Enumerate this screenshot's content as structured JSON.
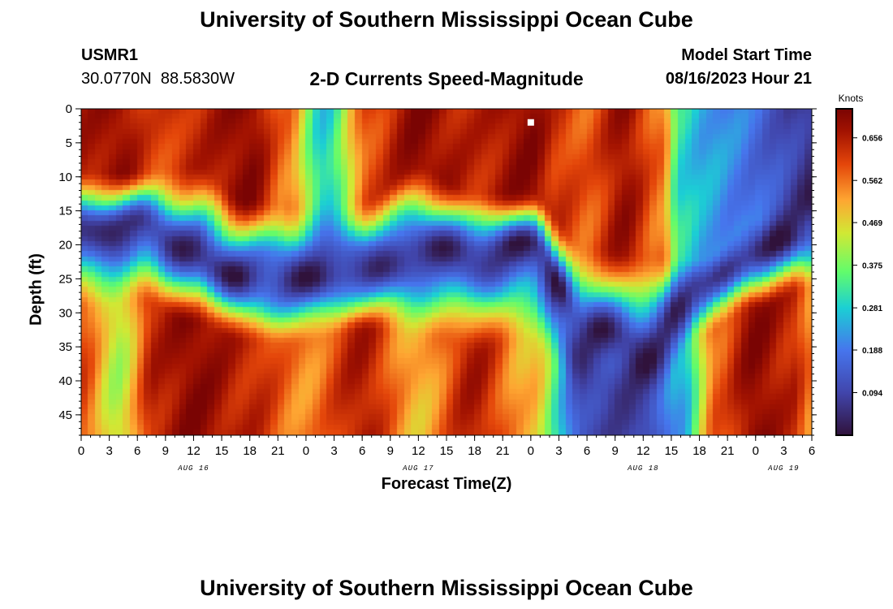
{
  "page": {
    "title_top": "University of Southern Mississippi Ocean Cube",
    "title_bottom": "University of Southern Mississippi Ocean Cube",
    "station_id": "USMR1",
    "station_coords": "30.0770N  88.5830W",
    "chart_heading": "2-D Currents Speed-Magnitude",
    "model_start_label": "Model Start Time",
    "model_start_value": "08/16/2023 Hour 21"
  },
  "chart_data": {
    "type": "heatmap",
    "title": "2-D Currents Speed-Magnitude",
    "xlabel": "Forecast Time(Z)",
    "ylabel": "Depth (ft)",
    "x_range": [
      0,
      78
    ],
    "y_range": [
      0,
      48
    ],
    "x_ticks": [
      "0",
      "3",
      "6",
      "9",
      "12",
      "15",
      "18",
      "21",
      "0",
      "3",
      "6",
      "9",
      "12",
      "15",
      "18",
      "21",
      "0",
      "3",
      "6",
      "9",
      "12",
      "15",
      "18",
      "21",
      "0",
      "3",
      "6"
    ],
    "y_ticks": [
      0,
      5,
      10,
      15,
      20,
      25,
      30,
      35,
      40,
      45
    ],
    "date_labels": [
      {
        "text": "AUG 16",
        "hour": 12
      },
      {
        "text": "AUG 17",
        "hour": 36
      },
      {
        "text": "AUG 18",
        "hour": 60
      },
      {
        "text": "AUG 19",
        "hour": 75
      }
    ],
    "colorbar": {
      "unit": "Knots",
      "min": 0.0,
      "max": 0.72,
      "ticks": [
        0.656,
        0.562,
        0.469,
        0.375,
        0.281,
        0.188,
        0.094
      ],
      "tick_labels": [
        "0.656",
        "0.562",
        "0.469",
        "0.375",
        "0.281",
        "0.188",
        "0.094"
      ]
    },
    "surface_field": {
      "description": "surface layer speed by forecast hour",
      "hours": [
        0,
        4,
        8,
        12,
        18,
        22,
        26,
        31,
        36,
        42,
        48,
        51,
        54,
        58,
        62,
        64,
        67,
        70,
        72,
        74,
        76,
        78
      ],
      "speeds": [
        0.66,
        0.69,
        0.6,
        0.64,
        0.7,
        0.56,
        0.28,
        0.6,
        0.7,
        0.64,
        0.7,
        0.62,
        0.58,
        0.68,
        0.56,
        0.3,
        0.24,
        0.2,
        0.17,
        0.13,
        0.09,
        0.06
      ]
    },
    "bottom_field": {
      "description": "near-bottom layer speed by forecast hour",
      "hours": [
        0,
        4,
        8,
        12,
        18,
        24,
        30,
        36,
        42,
        48,
        54,
        60,
        64,
        68,
        72,
        76,
        78
      ],
      "speeds": [
        0.6,
        0.42,
        0.65,
        0.7,
        0.64,
        0.54,
        0.66,
        0.5,
        0.66,
        0.5,
        0.1,
        0.08,
        0.24,
        0.58,
        0.7,
        0.64,
        0.55
      ]
    },
    "low_speed_band": {
      "description": "depth (ft) of the low-speed core by forecast hour",
      "hours": [
        0,
        6,
        12,
        18,
        24,
        30,
        36,
        42,
        48,
        54,
        60,
        66,
        72,
        78
      ],
      "core_depth_ft": [
        18,
        17,
        22,
        25,
        25,
        24,
        21,
        21,
        20,
        33,
        35,
        26,
        21,
        18
      ],
      "upper_edge_ft": [
        9,
        9,
        8,
        13,
        14,
        13,
        8,
        12,
        12,
        20,
        21,
        22,
        16,
        6
      ],
      "lower_edge_ft": [
        30,
        29,
        32,
        35,
        35,
        33,
        34,
        36,
        35,
        44,
        48,
        34,
        30,
        27
      ]
    },
    "marker": {
      "hour": 48,
      "depth_ft": 2
    }
  }
}
